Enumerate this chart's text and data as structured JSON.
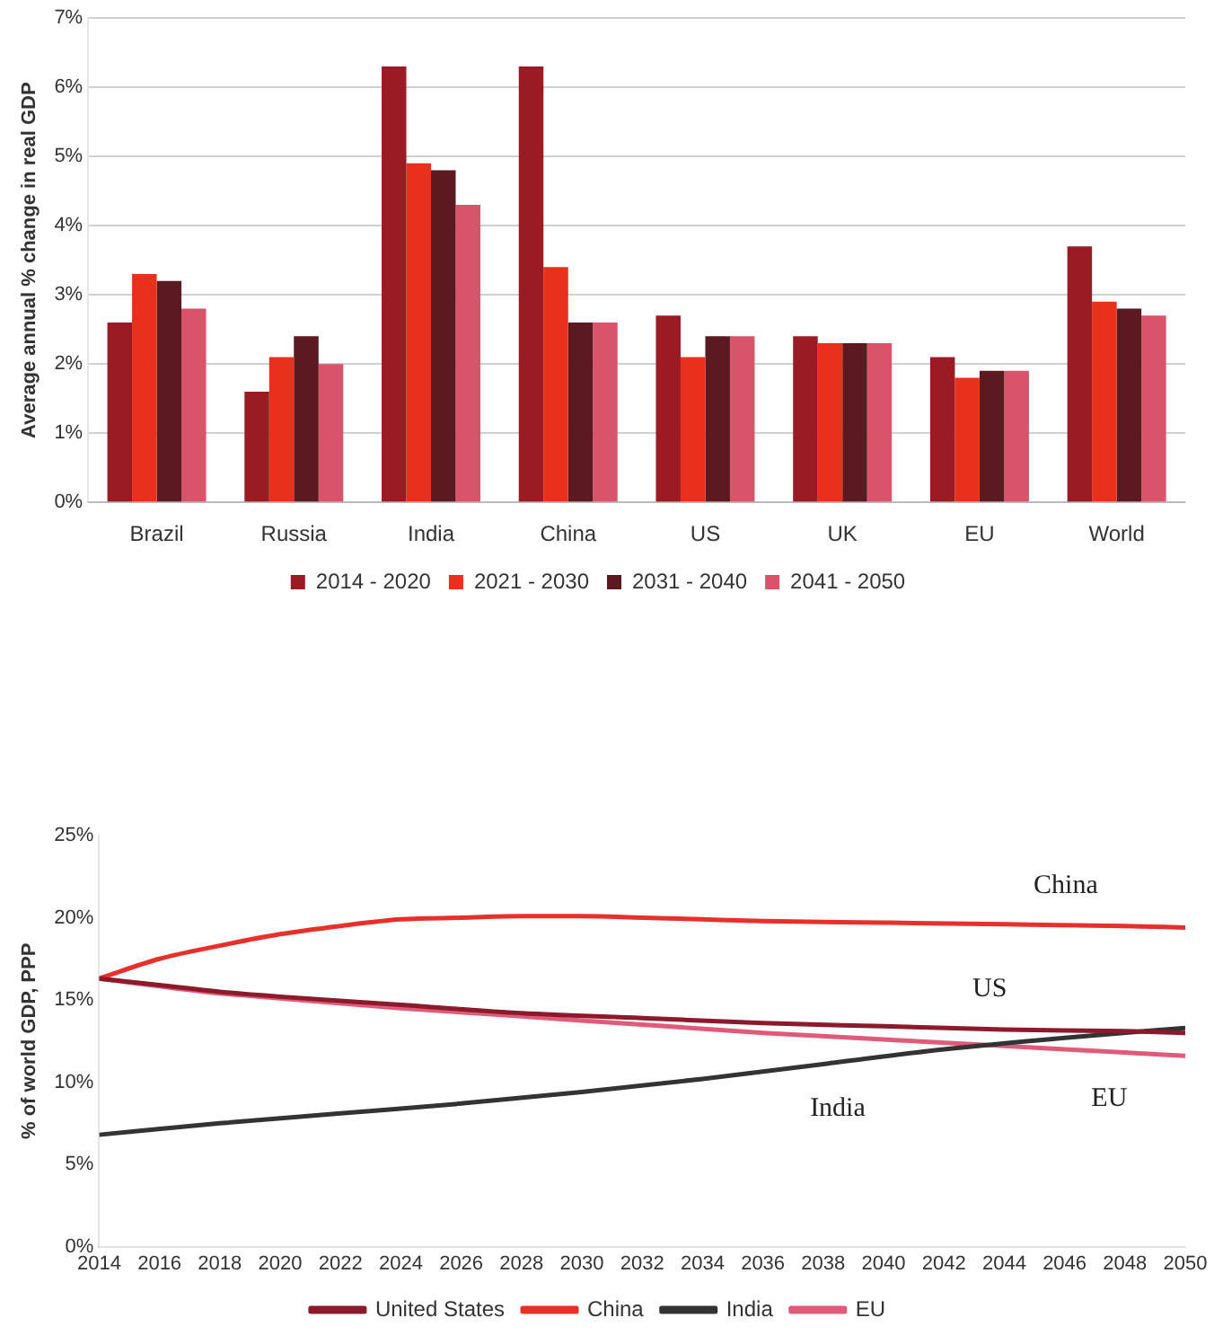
{
  "chart_data": [
    {
      "type": "bar",
      "ylabel": "Average annual % change in real GDP",
      "categories": [
        "Brazil",
        "Russia",
        "India",
        "China",
        "US",
        "UK",
        "EU",
        "World"
      ],
      "series": [
        {
          "name": "2014 - 2020",
          "color": "#9b1b24",
          "values": [
            2.6,
            1.6,
            6.3,
            6.3,
            2.7,
            2.4,
            2.1,
            3.7
          ]
        },
        {
          "name": "2021 - 2030",
          "color": "#e8301c",
          "values": [
            3.3,
            2.1,
            4.9,
            3.4,
            2.1,
            2.3,
            1.8,
            2.9
          ]
        },
        {
          "name": "2031 - 2040",
          "color": "#5a1a1f",
          "values": [
            3.2,
            2.4,
            4.8,
            2.6,
            2.4,
            2.3,
            1.9,
            2.8
          ]
        },
        {
          "name": "2041 - 2050",
          "color": "#d9536a",
          "values": [
            2.8,
            2.0,
            4.3,
            2.6,
            2.4,
            2.3,
            1.9,
            2.7
          ]
        }
      ],
      "ylim": [
        0,
        7
      ],
      "yticks": [
        {
          "value": 0,
          "label": "0%"
        },
        {
          "value": 1,
          "label": "1%"
        },
        {
          "value": 2,
          "label": "2%"
        },
        {
          "value": 3,
          "label": "3%"
        },
        {
          "value": 4,
          "label": "4%"
        },
        {
          "value": 5,
          "label": "5%"
        },
        {
          "value": 6,
          "label": "6%"
        },
        {
          "value": 7,
          "label": "7%"
        }
      ],
      "grid": "y",
      "legend": "bottom"
    },
    {
      "type": "line",
      "ylabel": "% of world GDP, PPP",
      "series": [
        {
          "name": "United States",
          "color": "#8b1a2b",
          "x": [
            2014,
            2016,
            2018,
            2020,
            2024,
            2028,
            2032,
            2036,
            2040,
            2044,
            2048,
            2050
          ],
          "values": [
            16.3,
            15.9,
            15.5,
            15.2,
            14.7,
            14.2,
            13.9,
            13.6,
            13.4,
            13.2,
            13.1,
            13.0
          ]
        },
        {
          "name": "China",
          "color": "#e8302a",
          "x": [
            2014,
            2016,
            2018,
            2020,
            2022,
            2024,
            2026,
            2028,
            2030,
            2032,
            2034,
            2036,
            2040,
            2044,
            2048,
            2050
          ],
          "values": [
            16.3,
            17.5,
            18.3,
            19.0,
            19.5,
            19.9,
            20.0,
            20.1,
            20.1,
            20.0,
            19.9,
            19.8,
            19.7,
            19.6,
            19.5,
            19.4
          ]
        },
        {
          "name": "India",
          "color": "#333333",
          "x": [
            2014,
            2018,
            2022,
            2026,
            2030,
            2034,
            2038,
            2042,
            2046,
            2050
          ],
          "values": [
            6.8,
            7.5,
            8.1,
            8.7,
            9.4,
            10.2,
            11.1,
            12.0,
            12.7,
            13.3
          ]
        },
        {
          "name": "EU",
          "color": "#e05a7a",
          "x": [
            2014,
            2018,
            2020,
            2024,
            2028,
            2032,
            2036,
            2040,
            2044,
            2048,
            2050
          ],
          "values": [
            16.3,
            15.4,
            15.1,
            14.5,
            14.0,
            13.5,
            13.0,
            12.6,
            12.2,
            11.8,
            11.6
          ]
        }
      ],
      "xlim": [
        2014,
        2050
      ],
      "xticks": [
        2014,
        2016,
        2018,
        2020,
        2022,
        2024,
        2026,
        2028,
        2030,
        2032,
        2034,
        2036,
        2038,
        2040,
        2042,
        2044,
        2046,
        2048,
        2050
      ],
      "ylim": [
        0,
        25
      ],
      "yticks": [
        {
          "value": 0,
          "label": "0%"
        },
        {
          "value": 5,
          "label": "5%"
        },
        {
          "value": 10,
          "label": "10%"
        },
        {
          "value": 15,
          "label": "15%"
        },
        {
          "value": 20,
          "label": "20%"
        },
        {
          "value": 25,
          "label": "25%"
        }
      ],
      "annotations": [
        "US",
        "China",
        "India",
        "EU"
      ],
      "grid": false,
      "legend": "bottom",
      "marker": "none",
      "line_style": "solid"
    }
  ]
}
